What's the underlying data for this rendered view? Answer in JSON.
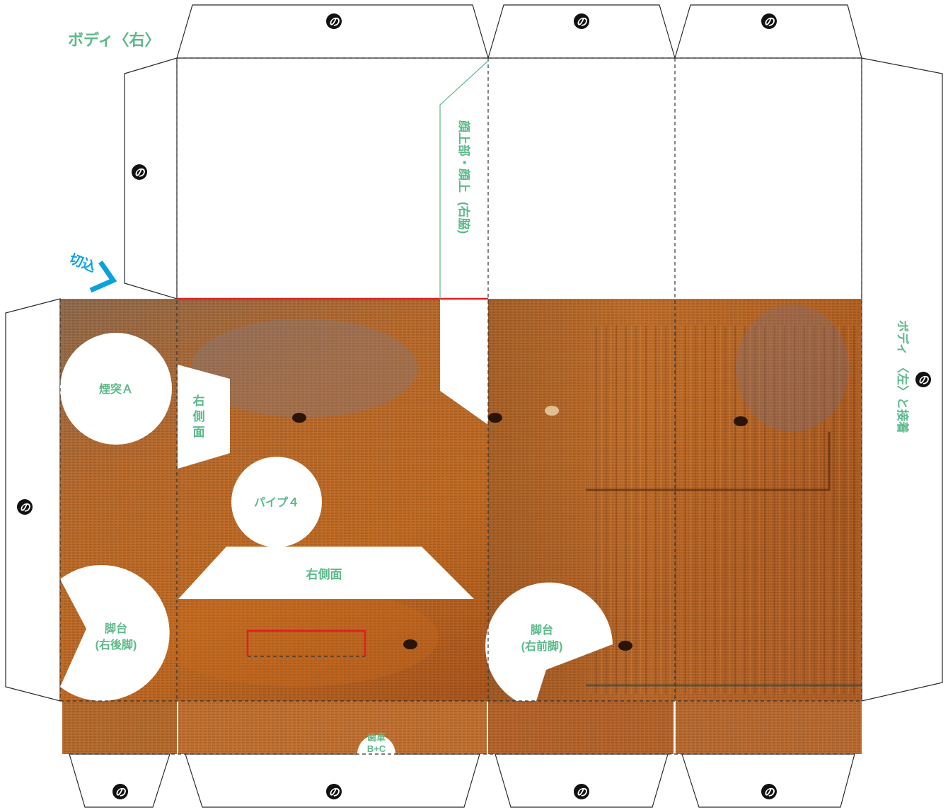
{
  "labels": {
    "title": "ボディ〈右〉",
    "cut_in": "切込",
    "face_top_lines": [
      "顔上部・顔上",
      "(右脇)"
    ],
    "attach_left_lines": [
      "ボディ",
      "〈左〉と接着"
    ],
    "chimney": "煙突Ａ",
    "right_side_tall": [
      "右",
      "側",
      "面"
    ],
    "pipe": "パイプ４",
    "right_side_wide": "右側面",
    "stand_rear": [
      "脚台",
      "(右後脚)"
    ],
    "stand_front": [
      "脚台",
      "(右前脚)"
    ],
    "gear": [
      "歯車",
      "B+C"
    ]
  },
  "glue_symbol": "の",
  "colors": {
    "accent_label": "#5cb98a",
    "cut_marker": "#0aa2de",
    "red_line": "#e02020",
    "rust": "#b5601e"
  }
}
